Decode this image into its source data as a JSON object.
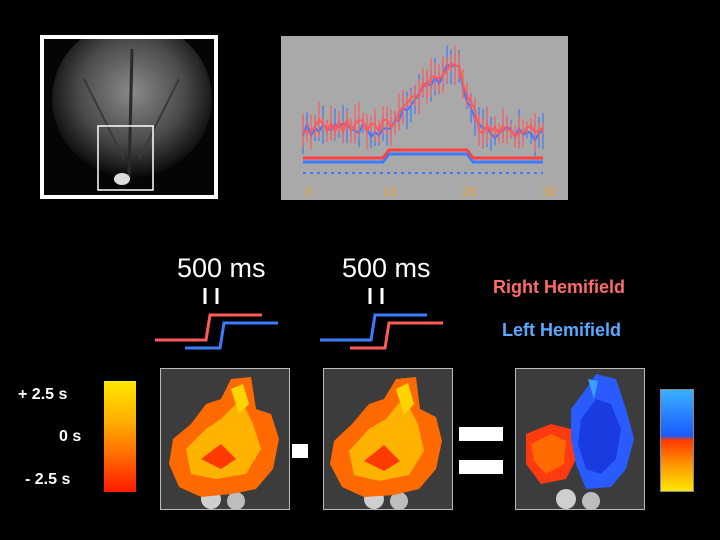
{
  "plot": {
    "x_ticks": [
      "0",
      "10",
      "20",
      "30"
    ]
  },
  "stimulus": {
    "duration_left": "500 ms",
    "duration_middle": "500 ms"
  },
  "legend": {
    "right_hemifield": "Right Hemifield",
    "left_hemifield": "Left Hemifield"
  },
  "colorbar": {
    "top_label": "+ 2.5 s",
    "mid_label": "0 s",
    "bottom_label": "- 2.5 s"
  },
  "colors": {
    "right_hemifield": "#ff5a5a",
    "left_hemifield": "#3a7bff",
    "tick": "#e8a23a"
  }
}
